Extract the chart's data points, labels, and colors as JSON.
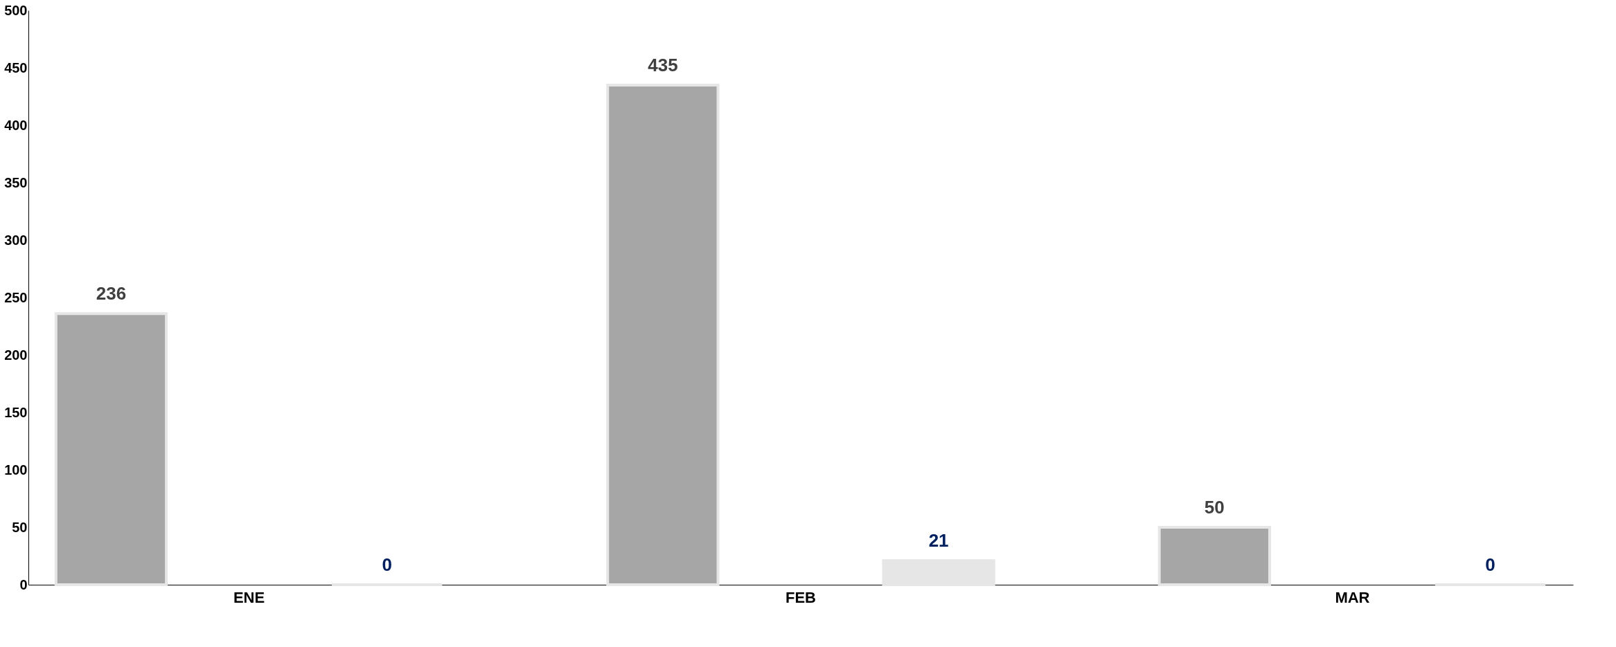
{
  "chart_data": {
    "type": "bar",
    "categories": [
      "ENE",
      "FEB",
      "MAR"
    ],
    "series": [
      {
        "color": "#a6a6a6",
        "values": [
          236,
          435,
          50
        ]
      },
      {
        "color": "#e7e6e6",
        "values": [
          0,
          21,
          0
        ]
      }
    ],
    "ylim": [
      0,
      500
    ],
    "yticks": [
      0,
      50,
      100,
      150,
      200,
      250,
      300,
      350,
      400,
      450,
      500
    ],
    "grid": false,
    "data_labels": true
  }
}
